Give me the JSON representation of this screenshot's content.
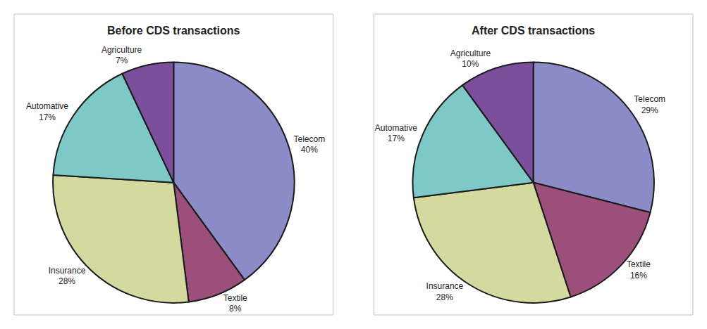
{
  "chart_data": [
    {
      "type": "pie",
      "title": "Before CDS transactions",
      "categories": [
        "Telecom",
        "Textile",
        "Insurance",
        "Automative",
        "Agriculture"
      ],
      "values": [
        40,
        8,
        28,
        17,
        7
      ],
      "value_labels": [
        "40%",
        "8%",
        "28%",
        "17%",
        "7%"
      ],
      "colors": [
        "#8b8bc8",
        "#9b4f7a",
        "#d4d9a0",
        "#7ec8c8",
        "#7b4f9b"
      ],
      "data_labels": true
    },
    {
      "type": "pie",
      "title": "After CDS transactions",
      "categories": [
        "Telecom",
        "Textile",
        "Insurance",
        "Automative",
        "Agriculture"
      ],
      "values": [
        29,
        16,
        28,
        17,
        10
      ],
      "value_labels": [
        "29%",
        "16%",
        "28%",
        "17%",
        "10%"
      ],
      "colors": [
        "#8b8bc8",
        "#9b4f7a",
        "#d4d9a0",
        "#7ec8c8",
        "#7b4f9b"
      ],
      "data_labels": true
    }
  ]
}
